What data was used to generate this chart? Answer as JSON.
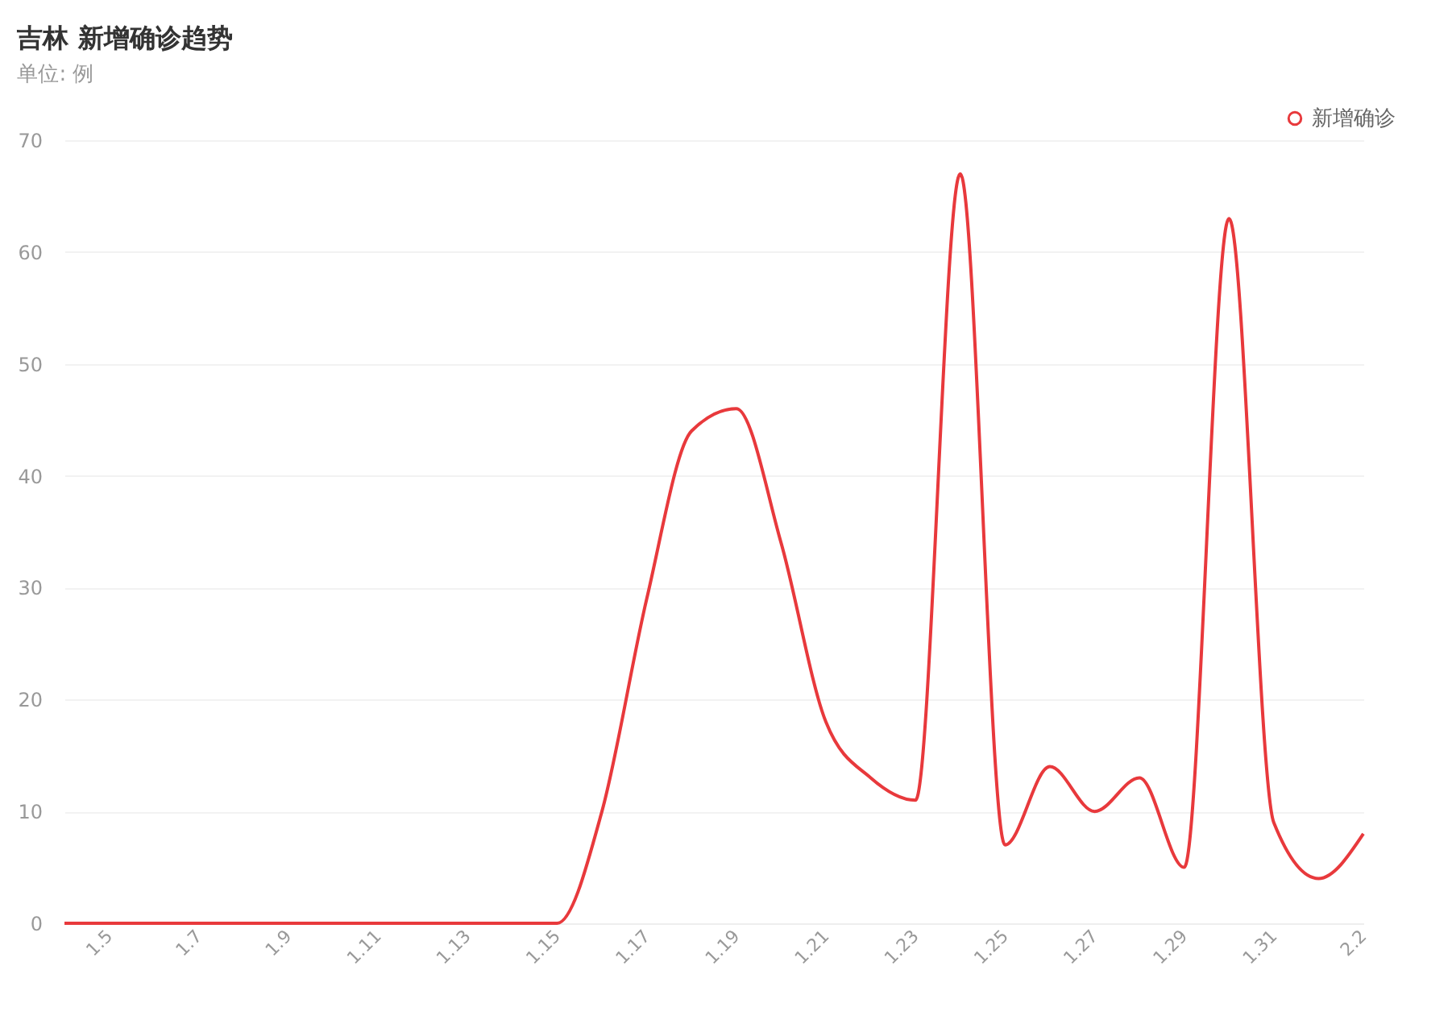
{
  "chart_data": {
    "type": "line",
    "title": "吉林 新增确诊趋势",
    "subtitle": "单位: 例",
    "categories": [
      null,
      "1.5",
      null,
      "1.7",
      null,
      "1.9",
      null,
      "1.11",
      null,
      "1.13",
      null,
      "1.15",
      null,
      "1.17",
      null,
      "1.19",
      null,
      "1.21",
      null,
      "1.23",
      null,
      "1.25",
      null,
      "1.27",
      null,
      "1.29",
      null,
      "1.31",
      null,
      "2.2"
    ],
    "series": [
      {
        "name": "新增确诊",
        "color": "#e8393c",
        "values": [
          0,
          0,
          0,
          0,
          0,
          0,
          0,
          0,
          0,
          0,
          0,
          0,
          10,
          29,
          44,
          46,
          34,
          18,
          13,
          11,
          67,
          7,
          14,
          10,
          13,
          5,
          63,
          9,
          4,
          8
        ]
      }
    ],
    "ylim": [
      0,
      70
    ],
    "yticks": [
      0,
      10,
      20,
      30,
      40,
      50,
      60,
      70
    ],
    "grid": "y",
    "legend": "top right",
    "marker": "none",
    "line_style": "solid"
  }
}
